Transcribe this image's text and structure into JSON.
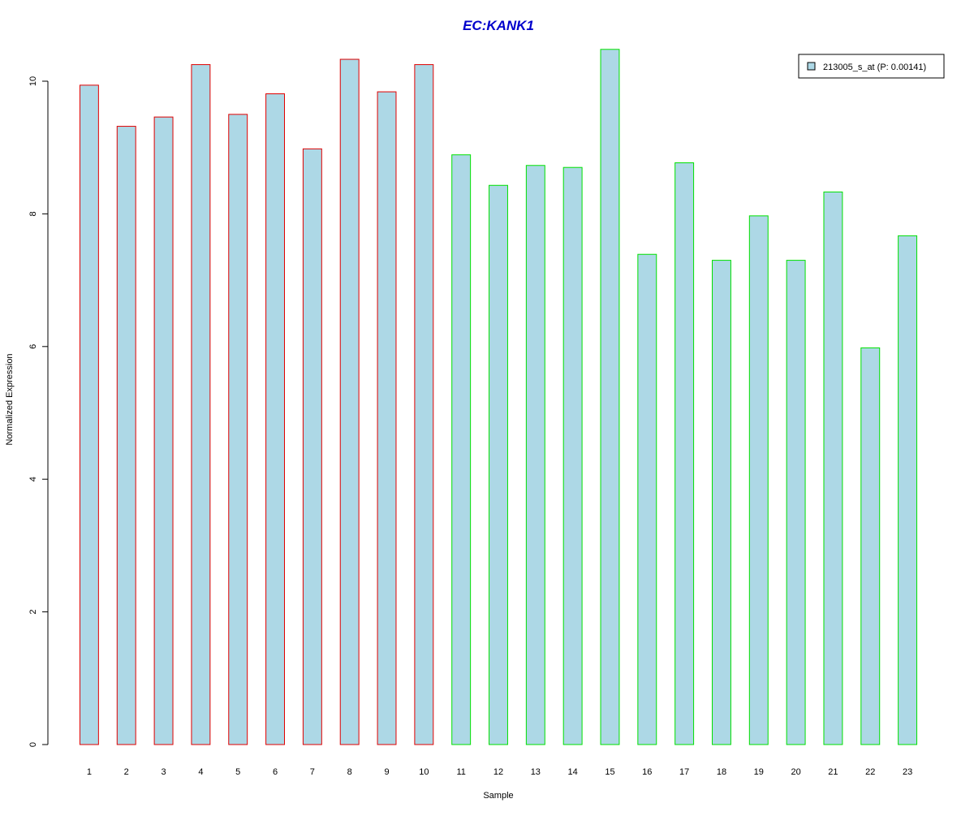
{
  "chart_data": {
    "type": "bar",
    "title": "EC:KANK1",
    "xlabel": "Sample",
    "ylabel": "Normalized Expression",
    "ylim": [
      0,
      10.5
    ],
    "yticks": [
      0,
      2,
      4,
      6,
      8,
      10
    ],
    "categories": [
      "1",
      "2",
      "3",
      "4",
      "5",
      "6",
      "7",
      "8",
      "9",
      "10",
      "11",
      "12",
      "13",
      "14",
      "15",
      "16",
      "17",
      "18",
      "19",
      "20",
      "21",
      "22",
      "23"
    ],
    "series": [
      {
        "name": "213005_s_at (P: 0.00141)",
        "values": [
          9.94,
          9.32,
          9.46,
          10.25,
          9.5,
          9.81,
          8.98,
          10.33,
          9.84,
          10.25,
          8.89,
          8.43,
          8.73,
          8.7,
          10.48,
          7.39,
          8.77,
          7.3,
          7.97,
          7.3,
          8.33,
          5.98,
          7.67
        ]
      }
    ],
    "groups": [
      {
        "range": [
          1,
          10
        ],
        "border_color": "#e00000"
      },
      {
        "range": [
          11,
          23
        ],
        "border_color": "#00e000"
      }
    ],
    "fill_color": "#add8e6",
    "title_color": "#0000cc",
    "legend_position": "top-right",
    "grid": false
  }
}
